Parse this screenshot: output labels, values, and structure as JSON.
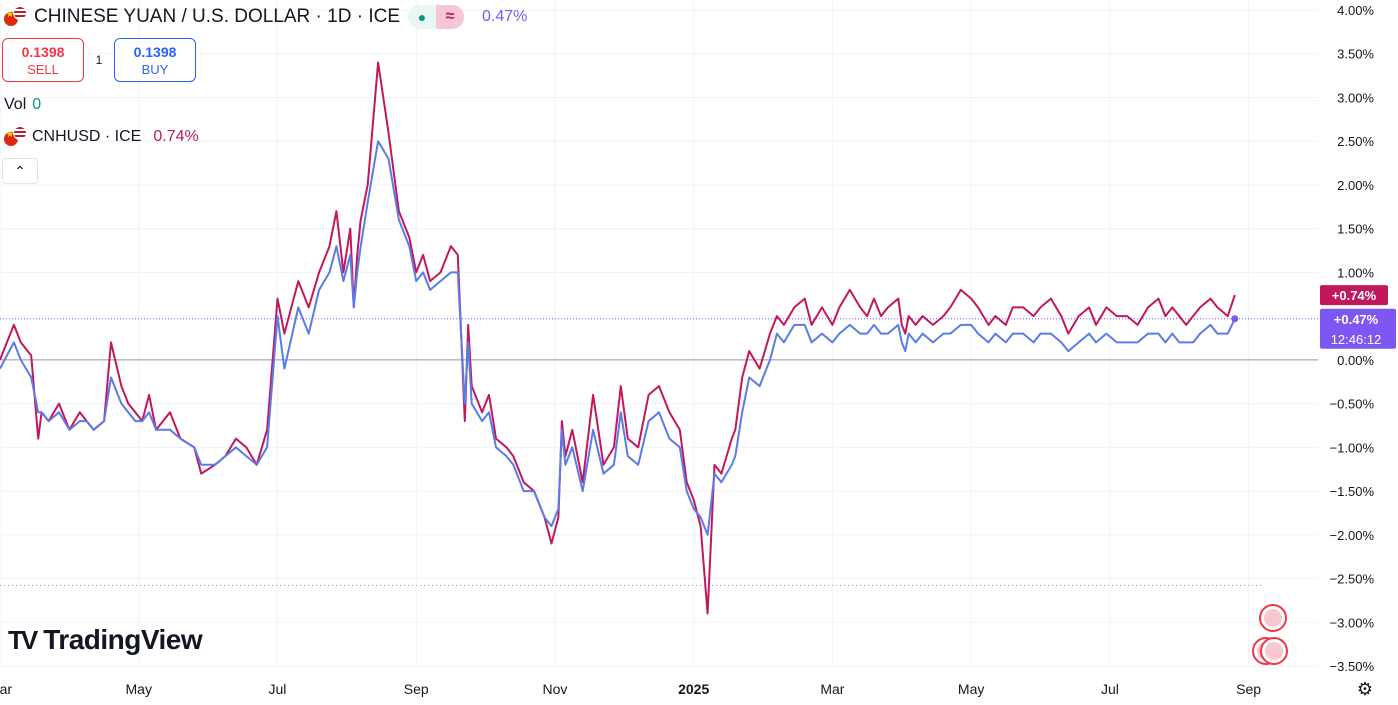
{
  "header": {
    "title": "CHINESE YUAN / U.S. DOLLAR · 1D · ICE",
    "main_change": "0.47%",
    "approx_symbol": "≈",
    "dot_symbol": "●"
  },
  "trade": {
    "sell_price": "0.1398",
    "sell_label": "SELL",
    "spread": "1",
    "buy_price": "0.1398",
    "buy_label": "BUY"
  },
  "volume": {
    "label": "Vol",
    "value": "0"
  },
  "compare": {
    "symbol": "CNHUSD · ICE",
    "change": "0.74%"
  },
  "collapse_glyph": "⌃",
  "brand": {
    "mark": "TV",
    "name": "TradingView"
  },
  "colors": {
    "main": "#5b7be8",
    "main_tail": "#8a5cf0",
    "compare": "#c2185b",
    "grid": "#f0f3fa",
    "zero": "#9598a1"
  },
  "chart_data": {
    "type": "line",
    "y_unit": "%",
    "ylim": [
      -3.5,
      4.0
    ],
    "y_ticks": [
      "4.00%",
      "3.50%",
      "3.00%",
      "2.50%",
      "2.00%",
      "1.50%",
      "1.00%",
      "0.50%",
      "0.00%",
      "−0.50%",
      "−1.00%",
      "−1.50%",
      "−2.00%",
      "−2.50%",
      "−3.00%",
      "−3.50%"
    ],
    "y_tick_values": [
      4.0,
      3.5,
      3.0,
      2.5,
      2.0,
      1.5,
      1.0,
      0.5,
      0.0,
      -0.5,
      -1.0,
      -1.5,
      -2.0,
      -2.5,
      -3.0,
      -3.5
    ],
    "x_range": [
      0,
      19.0
    ],
    "x_ticks": [
      {
        "label": "Mar",
        "x": 0
      },
      {
        "label": "May",
        "x": 2
      },
      {
        "label": "Jul",
        "x": 4
      },
      {
        "label": "Sep",
        "x": 6
      },
      {
        "label": "Nov",
        "x": 8
      },
      {
        "label": "2025",
        "x": 10
      },
      {
        "label": "Mar",
        "x": 12
      },
      {
        "label": "May",
        "x": 14
      },
      {
        "label": "Jul",
        "x": 16
      },
      {
        "label": "Sep",
        "x": 18
      }
    ],
    "badges": {
      "compare_last": "+0.74%",
      "main_last": "+0.47%",
      "countdown": "12:46:12"
    },
    "series": [
      {
        "name": "CNHUSD · ICE",
        "color": "#c2185b",
        "x": [
          0,
          0.1,
          0.2,
          0.3,
          0.45,
          0.55,
          0.6,
          0.7,
          0.85,
          1.0,
          1.15,
          1.25,
          1.35,
          1.5,
          1.6,
          1.75,
          1.85,
          1.95,
          2.05,
          2.15,
          2.25,
          2.35,
          2.45,
          2.6,
          2.8,
          2.9,
          3.1,
          3.25,
          3.4,
          3.55,
          3.7,
          3.85,
          4.0,
          4.1,
          4.3,
          4.45,
          4.6,
          4.75,
          4.85,
          4.95,
          5.05,
          5.1,
          5.15,
          5.2,
          5.3,
          5.45,
          5.6,
          5.75,
          5.9,
          6.0,
          6.1,
          6.2,
          6.35,
          6.5,
          6.6,
          6.7,
          6.75,
          6.8,
          6.95,
          7.05,
          7.15,
          7.3,
          7.4,
          7.55,
          7.7,
          7.85,
          7.95,
          8.05,
          8.1,
          8.15,
          8.25,
          8.4,
          8.55,
          8.7,
          8.85,
          8.95,
          9.05,
          9.2,
          9.35,
          9.5,
          9.65,
          9.8,
          9.9,
          10.0,
          10.1,
          10.2,
          10.3,
          10.4,
          10.55,
          10.6,
          10.7,
          10.8,
          10.95,
          11.1,
          11.2,
          11.3,
          11.45,
          11.6,
          11.7,
          11.85,
          12.0,
          12.1,
          12.25,
          12.4,
          12.5,
          12.6,
          12.7,
          12.8,
          12.95,
          13.0,
          13.05,
          13.1,
          13.2,
          13.3,
          13.45,
          13.6,
          13.7,
          13.85,
          14.0,
          14.1,
          14.25,
          14.35,
          14.5,
          14.6,
          14.75,
          14.9,
          15.0,
          15.15,
          15.3,
          15.4,
          15.55,
          15.7,
          15.8,
          15.95,
          16.1,
          16.25,
          16.4,
          16.55,
          16.7,
          16.8,
          16.9,
          17.0,
          17.1,
          17.2,
          17.3,
          17.45,
          17.55,
          17.7,
          17.8
        ],
        "y": [
          0.0,
          0.2,
          0.4,
          0.2,
          0.05,
          -0.9,
          -0.6,
          -0.7,
          -0.5,
          -0.8,
          -0.6,
          -0.7,
          -0.8,
          -0.7,
          0.2,
          -0.3,
          -0.5,
          -0.6,
          -0.7,
          -0.4,
          -0.8,
          -0.7,
          -0.6,
          -0.9,
          -1.0,
          -1.3,
          -1.2,
          -1.1,
          -0.9,
          -1.0,
          -1.2,
          -0.8,
          0.7,
          0.3,
          0.9,
          0.6,
          1.0,
          1.3,
          1.7,
          1.0,
          1.5,
          0.6,
          1.2,
          1.6,
          2.0,
          3.4,
          2.6,
          1.7,
          1.4,
          1.0,
          1.2,
          0.9,
          1.0,
          1.3,
          1.2,
          -0.7,
          0.4,
          -0.3,
          -0.6,
          -0.4,
          -0.9,
          -1.0,
          -1.1,
          -1.4,
          -1.5,
          -1.8,
          -2.1,
          -1.8,
          -0.7,
          -1.1,
          -0.8,
          -1.4,
          -0.4,
          -1.2,
          -1.0,
          -0.3,
          -0.9,
          -1.0,
          -0.4,
          -0.3,
          -0.6,
          -0.8,
          -1.4,
          -1.6,
          -1.9,
          -2.9,
          -1.2,
          -1.3,
          -0.9,
          -0.8,
          -0.2,
          0.1,
          -0.1,
          0.3,
          0.5,
          0.4,
          0.6,
          0.7,
          0.4,
          0.6,
          0.4,
          0.6,
          0.8,
          0.6,
          0.5,
          0.7,
          0.5,
          0.6,
          0.7,
          0.4,
          0.3,
          0.5,
          0.4,
          0.5,
          0.4,
          0.5,
          0.6,
          0.8,
          0.7,
          0.6,
          0.4,
          0.5,
          0.4,
          0.6,
          0.6,
          0.5,
          0.6,
          0.7,
          0.5,
          0.3,
          0.5,
          0.6,
          0.4,
          0.6,
          0.5,
          0.5,
          0.4,
          0.6,
          0.7,
          0.5,
          0.6,
          0.5,
          0.4,
          0.5,
          0.6,
          0.7,
          0.6,
          0.5,
          0.74
        ]
      },
      {
        "name": "CHINESE YUAN / U.S. DOLLAR",
        "color": "#5b7be8",
        "x": [
          0,
          0.1,
          0.2,
          0.3,
          0.45,
          0.55,
          0.6,
          0.7,
          0.85,
          1.0,
          1.15,
          1.25,
          1.35,
          1.5,
          1.6,
          1.75,
          1.85,
          1.95,
          2.05,
          2.15,
          2.25,
          2.35,
          2.45,
          2.6,
          2.8,
          2.9,
          3.1,
          3.25,
          3.4,
          3.55,
          3.7,
          3.85,
          4.0,
          4.1,
          4.3,
          4.45,
          4.6,
          4.75,
          4.85,
          4.95,
          5.05,
          5.1,
          5.15,
          5.2,
          5.3,
          5.45,
          5.6,
          5.75,
          5.9,
          6.0,
          6.1,
          6.2,
          6.35,
          6.5,
          6.6,
          6.7,
          6.75,
          6.8,
          6.95,
          7.05,
          7.15,
          7.3,
          7.4,
          7.55,
          7.7,
          7.85,
          7.95,
          8.05,
          8.1,
          8.15,
          8.25,
          8.4,
          8.55,
          8.7,
          8.85,
          8.95,
          9.05,
          9.2,
          9.35,
          9.5,
          9.65,
          9.8,
          9.9,
          10.0,
          10.1,
          10.2,
          10.3,
          10.4,
          10.55,
          10.6,
          10.7,
          10.8,
          10.95,
          11.1,
          11.2,
          11.3,
          11.45,
          11.6,
          11.7,
          11.85,
          12.0,
          12.1,
          12.25,
          12.4,
          12.5,
          12.6,
          12.7,
          12.8,
          12.95,
          13.0,
          13.05,
          13.1,
          13.2,
          13.3,
          13.45,
          13.6,
          13.7,
          13.85,
          14.0,
          14.1,
          14.25,
          14.35,
          14.5,
          14.6,
          14.75,
          14.9,
          15.0,
          15.15,
          15.3,
          15.4,
          15.55,
          15.7,
          15.8,
          15.95,
          16.1,
          16.25,
          16.4,
          16.55,
          16.7,
          16.8,
          16.9,
          17.0,
          17.1,
          17.2,
          17.3,
          17.45,
          17.55,
          17.7,
          17.8
        ],
        "y": [
          -0.1,
          0.05,
          0.2,
          0.0,
          -0.2,
          -0.6,
          -0.6,
          -0.7,
          -0.6,
          -0.8,
          -0.7,
          -0.7,
          -0.8,
          -0.7,
          -0.2,
          -0.5,
          -0.6,
          -0.7,
          -0.7,
          -0.6,
          -0.8,
          -0.8,
          -0.8,
          -0.9,
          -1.0,
          -1.2,
          -1.2,
          -1.1,
          -1.0,
          -1.1,
          -1.2,
          -1.0,
          0.5,
          -0.1,
          0.6,
          0.3,
          0.8,
          1.0,
          1.3,
          0.9,
          1.2,
          0.6,
          1.0,
          1.3,
          1.8,
          2.5,
          2.3,
          1.6,
          1.3,
          0.9,
          1.0,
          0.8,
          0.9,
          1.0,
          1.0,
          -0.5,
          0.2,
          -0.5,
          -0.7,
          -0.6,
          -1.0,
          -1.1,
          -1.2,
          -1.5,
          -1.5,
          -1.8,
          -1.9,
          -1.7,
          -0.8,
          -1.2,
          -1.0,
          -1.5,
          -0.8,
          -1.3,
          -1.2,
          -0.6,
          -1.1,
          -1.2,
          -0.7,
          -0.6,
          -0.9,
          -1.0,
          -1.5,
          -1.7,
          -1.8,
          -2.0,
          -1.3,
          -1.4,
          -1.2,
          -1.1,
          -0.6,
          -0.2,
          -0.3,
          0.0,
          0.3,
          0.2,
          0.4,
          0.4,
          0.2,
          0.3,
          0.2,
          0.3,
          0.4,
          0.3,
          0.3,
          0.4,
          0.3,
          0.3,
          0.4,
          0.2,
          0.1,
          0.3,
          0.2,
          0.3,
          0.2,
          0.3,
          0.3,
          0.4,
          0.4,
          0.3,
          0.2,
          0.3,
          0.2,
          0.3,
          0.3,
          0.2,
          0.3,
          0.3,
          0.2,
          0.1,
          0.2,
          0.3,
          0.2,
          0.3,
          0.2,
          0.2,
          0.2,
          0.3,
          0.3,
          0.2,
          0.3,
          0.2,
          0.2,
          0.2,
          0.3,
          0.4,
          0.3,
          0.3,
          0.47
        ]
      }
    ]
  }
}
